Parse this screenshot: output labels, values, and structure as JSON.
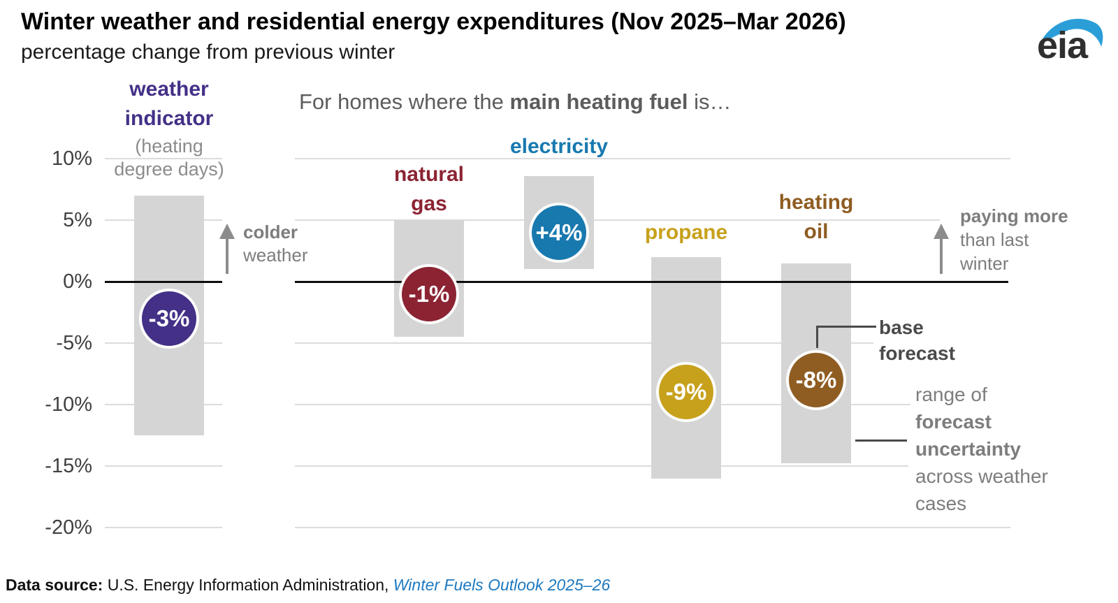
{
  "header": {
    "logo_text": "eia"
  },
  "chart_data": {
    "type": "bar",
    "title": "Winter weather and residential energy expenditures (Nov 2025–Mar 2026)",
    "subtitle": "percentage change from previous winter",
    "heading": {
      "prefix": "For homes where the ",
      "bold": "main heating fuel",
      "suffix": " is…"
    },
    "ylim": [
      -20,
      10
    ],
    "yticks": [
      10,
      5,
      0,
      -5,
      -10,
      -15,
      -20
    ],
    "ytick_labels": [
      "10%",
      "5%",
      "0%",
      "-5%",
      "-10%",
      "-15%",
      "-20%"
    ],
    "grid": true,
    "range_bar_color": "#d5d5d5",
    "series": [
      {
        "name": "weather indicator",
        "label_lines": [
          "weather",
          "indicator"
        ],
        "sublabel_lines": [
          "(heating",
          "degree days)"
        ],
        "base_forecast": -3,
        "value_label": "-3%",
        "uncertainty_range": [
          7,
          -12.5
        ],
        "color": "#443087"
      },
      {
        "name": "natural gas",
        "label_lines": [
          "natural",
          "gas"
        ],
        "base_forecast": -1,
        "value_label": "-1%",
        "uncertainty_range": [
          5,
          -4.5
        ],
        "color": "#8b2333"
      },
      {
        "name": "electricity",
        "label_lines": [
          "electricity"
        ],
        "base_forecast": 4,
        "value_label": "+4%",
        "uncertainty_range": [
          8.6,
          1
        ],
        "color": "#1879af"
      },
      {
        "name": "propane",
        "label_lines": [
          "propane"
        ],
        "base_forecast": -9,
        "value_label": "-9%",
        "uncertainty_range": [
          2,
          -16
        ],
        "color": "#c7a11c"
      },
      {
        "name": "heating oil",
        "label_lines": [
          "heating",
          "oil"
        ],
        "base_forecast": -8,
        "value_label": "-8%",
        "uncertainty_range": [
          1.5,
          -14.8
        ],
        "color": "#8f5c22"
      }
    ],
    "annotations": {
      "colder_weather": {
        "lines": [
          {
            "text": "colder",
            "bold": true
          },
          {
            "text": "weather",
            "bold": false
          }
        ]
      },
      "paying_more": {
        "lines": [
          {
            "text": "paying more",
            "bold": true
          },
          {
            "text": "than last",
            "bold": false
          },
          {
            "text": "winter",
            "bold": false
          }
        ]
      },
      "base_forecast": {
        "lines": [
          {
            "text": "base",
            "bold": true
          },
          {
            "text": "forecast",
            "bold": true
          }
        ]
      },
      "forecast_uncertainty": {
        "lines": [
          {
            "text": "range of",
            "bold": false
          },
          {
            "text": "forecast",
            "bold": true
          },
          {
            "text": "uncertainty",
            "bold": true
          },
          {
            "text": "across weather",
            "bold": false
          },
          {
            "text": "cases",
            "bold": false
          }
        ]
      }
    }
  },
  "footer": {
    "label": "Data source:",
    "text": " U.S. Energy Information Administration, ",
    "link": "Winter Fuels Outlook 2025–26"
  }
}
